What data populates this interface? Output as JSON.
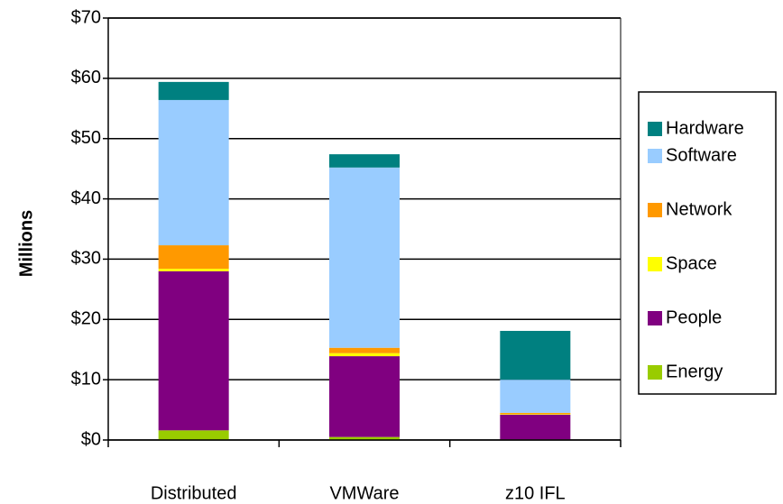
{
  "chart_data": {
    "type": "stacked_bar",
    "y_axis_label": "Millions",
    "categories": [
      "Distributed",
      "VMWare",
      "z10 IFL"
    ],
    "series": [
      {
        "name": "Energy",
        "color": "#99cc00",
        "values": [
          1.6,
          0.5,
          0.1
        ]
      },
      {
        "name": "People",
        "color": "#800080",
        "values": [
          26.4,
          13.4,
          4.1
        ]
      },
      {
        "name": "Space",
        "color": "#ffff00",
        "values": [
          0.4,
          0.5,
          0.1
        ]
      },
      {
        "name": "Network",
        "color": "#ff9900",
        "values": [
          3.9,
          0.9,
          0.2
        ]
      },
      {
        "name": "Software",
        "color": "#99ccff",
        "values": [
          24.1,
          29.9,
          5.5
        ]
      },
      {
        "name": "Hardware",
        "color": "#008080",
        "values": [
          3.0,
          2.2,
          8.1
        ]
      }
    ],
    "ylim": [
      0,
      70
    ],
    "yticks": [
      {
        "value": 0,
        "label": "$0"
      },
      {
        "value": 10,
        "label": "$10"
      },
      {
        "value": 20,
        "label": "$20"
      },
      {
        "value": 30,
        "label": "$30"
      },
      {
        "value": 40,
        "label": "$40"
      },
      {
        "value": 50,
        "label": "$50"
      },
      {
        "value": 60,
        "label": "$60"
      },
      {
        "value": 70,
        "label": "$70"
      }
    ],
    "grid": true,
    "legend": "right"
  }
}
